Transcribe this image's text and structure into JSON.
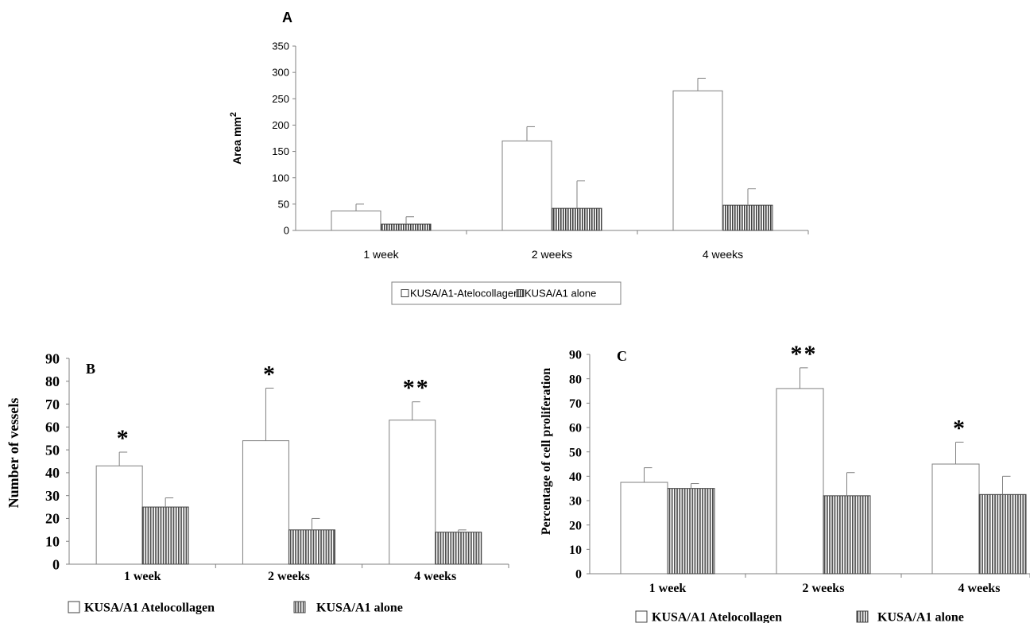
{
  "colors": {
    "axis": "#808080",
    "bar_open_fill": "#ffffff",
    "bar_open_stroke": "#7f7f7f",
    "bar_striped_stroke": "#404040",
    "text": "#000000"
  },
  "chart_data": [
    {
      "id": "A",
      "type": "bar",
      "panel_label": "A",
      "ylabel": "Area mm",
      "ylabel_superscript": "2",
      "ylim": [
        0,
        350
      ],
      "yticks": [
        0,
        50,
        100,
        150,
        200,
        250,
        300,
        350
      ],
      "tick_labels": [
        "0",
        "50",
        "100",
        "150",
        "200",
        "250",
        "300",
        "350"
      ],
      "categories": [
        "1 week",
        "2 weeks",
        "4 weeks"
      ],
      "series": [
        {
          "name": "KUSA/A1-Atelocollagen",
          "style": "open",
          "values": [
            37,
            170,
            265
          ],
          "errors": [
            13,
            27,
            24
          ]
        },
        {
          "name": "KUSA/A1 alone",
          "style": "striped",
          "values": [
            12,
            42,
            48
          ],
          "errors": [
            14,
            52,
            31
          ]
        }
      ],
      "annotations": [],
      "legend_position": "bottom"
    },
    {
      "id": "B",
      "type": "bar",
      "panel_label": "B",
      "ylabel": "Number of vessels",
      "ylim": [
        0,
        90
      ],
      "yticks": [
        0,
        10,
        20,
        30,
        40,
        50,
        60,
        70,
        80,
        90
      ],
      "tick_labels": [
        "0",
        "10",
        "20",
        "30",
        "40",
        "50",
        "60",
        "70",
        "80",
        "90"
      ],
      "categories": [
        "1 week",
        "2 weeks",
        "4 weeks"
      ],
      "series": [
        {
          "name": "KUSA/A1 Atelocollagen",
          "style": "open",
          "values": [
            43,
            54,
            63
          ],
          "errors": [
            6,
            23,
            8
          ]
        },
        {
          "name": "KUSA/A1 alone",
          "style": "striped",
          "values": [
            25,
            15,
            14
          ],
          "errors": [
            4,
            5,
            1
          ]
        }
      ],
      "annotations": [
        "*",
        "*",
        "**"
      ],
      "legend_position": "bottom"
    },
    {
      "id": "C",
      "type": "bar",
      "panel_label": "C",
      "ylabel": "Percentage of cell proliferation",
      "ylim": [
        0,
        90
      ],
      "yticks": [
        0,
        10,
        20,
        30,
        40,
        50,
        60,
        70,
        80,
        90
      ],
      "tick_labels": [
        "0",
        "10",
        "20",
        "30",
        "40",
        "50",
        "60",
        "70",
        "80",
        "90"
      ],
      "categories": [
        "1 week",
        "2 weeks",
        "4 weeks"
      ],
      "series": [
        {
          "name": "KUSA/A1 Atelocollagen",
          "style": "open",
          "values": [
            37.5,
            76,
            45
          ],
          "errors": [
            6,
            8.5,
            9
          ]
        },
        {
          "name": "KUSA/A1 alone",
          "style": "striped",
          "values": [
            35,
            32,
            32.5
          ],
          "errors": [
            2,
            9.5,
            7.5
          ]
        }
      ],
      "annotations": [
        "",
        "**",
        "*"
      ],
      "legend_position": "bottom"
    }
  ]
}
